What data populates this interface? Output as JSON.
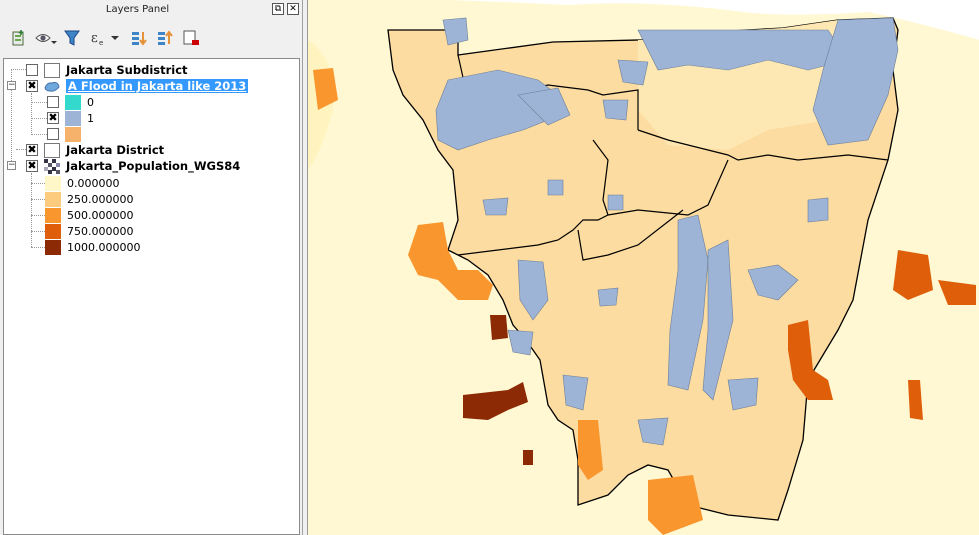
{
  "panel": {
    "title": "Layers Panel",
    "float_button": "⧉",
    "close_button": "✕"
  },
  "toolbar": {
    "items": [
      "add-group-icon",
      "visibility-eye-icon",
      "filter-icon",
      "expression-filter-icon",
      "expand-all-icon",
      "collapse-all-icon",
      "remove-layer-icon"
    ]
  },
  "layers": [
    {
      "name": "Jakarta Subdistrict",
      "checked": false
    },
    {
      "name": "A Flood in Jakarta like 2013",
      "checked": true,
      "selected": true,
      "classes": [
        {
          "label": "0",
          "checked": false,
          "color": "#33d9cc"
        },
        {
          "label": "1",
          "checked": true,
          "color": "#9db4d6"
        },
        {
          "label": "",
          "checked": false,
          "color": "#f6b26b"
        }
      ]
    },
    {
      "name": "Jakarta District",
      "checked": true
    },
    {
      "name": "Jakarta_Population_WGS84",
      "checked": true,
      "legend": [
        {
          "label": "0.000000",
          "color": "#fff7c8"
        },
        {
          "label": "250.000000",
          "color": "#fdcb7e"
        },
        {
          "label": "500.000000",
          "color": "#f9962e"
        },
        {
          "label": "750.000000",
          "color": "#df5e0a"
        },
        {
          "label": "1000.000000",
          "color": "#8b2a04"
        }
      ]
    }
  ],
  "colors": {
    "map_background": "#fff8d2",
    "district_fill": "#fcdca0",
    "flood": "#9db4d6",
    "boundary": "#000000",
    "selection": "#3399ff"
  }
}
